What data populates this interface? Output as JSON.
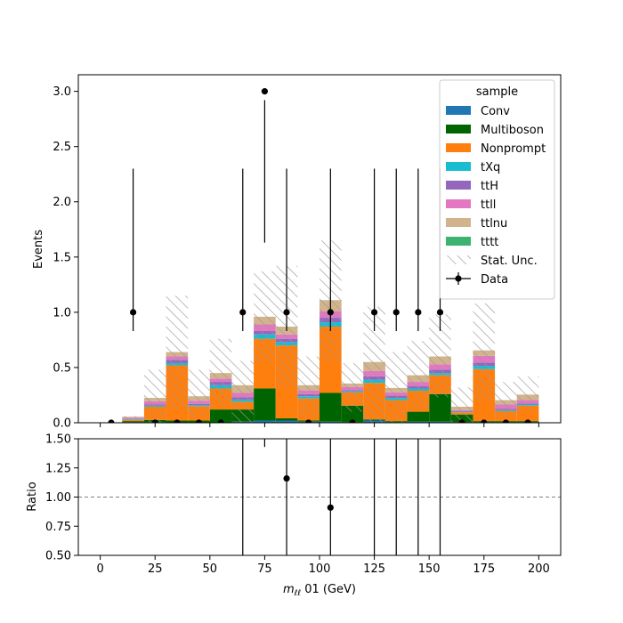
{
  "chart_data": {
    "type": "bar",
    "stacked": true,
    "xlabel_main": "m",
    "xlabel_sub": "ℓℓ",
    "xlabel_rest": " 01 (GeV)",
    "ylabel": "Events",
    "ratio_ylabel": "Ratio",
    "xlim": [
      -10,
      210
    ],
    "ylim": [
      0,
      3.15
    ],
    "ratio_ylim": [
      0.5,
      1.5
    ],
    "x_ticks": [
      0,
      25,
      50,
      75,
      100,
      125,
      150,
      175,
      200
    ],
    "x_tick_labels": [
      "0",
      "25",
      "50",
      "75",
      "100",
      "125",
      "150",
      "175",
      "200"
    ],
    "y_ticks": [
      0.0,
      0.5,
      1.0,
      1.5,
      2.0,
      2.5,
      3.0
    ],
    "y_tick_labels": [
      "0.0",
      "0.5",
      "1.0",
      "1.5",
      "2.0",
      "2.5",
      "3.0"
    ],
    "ratio_y_ticks": [
      0.5,
      0.75,
      1.0,
      1.25,
      1.5
    ],
    "ratio_y_tick_labels": [
      "0.50",
      "0.75",
      "1.00",
      "1.25",
      "1.50"
    ],
    "bin_edges": [
      0,
      10,
      20,
      30,
      40,
      50,
      60,
      70,
      80,
      90,
      100,
      110,
      120,
      130,
      140,
      150,
      160,
      170,
      180,
      190,
      200
    ],
    "legend": {
      "title": "sample",
      "placement": "top-right"
    },
    "series": [
      {
        "name": "Conv",
        "color": "#1f77b4",
        "values": [
          0,
          0.005,
          0.005,
          0,
          0,
          0,
          0.01,
          0.02,
          0.02,
          0.01,
          0.01,
          0.005,
          0.02,
          0.005,
          0.01,
          0.01,
          0.005,
          0.005,
          0.005,
          0.005
        ]
      },
      {
        "name": "Multiboson",
        "color": "#006400",
        "values": [
          0,
          0.01,
          0.02,
          0.02,
          0.02,
          0.12,
          0.11,
          0.29,
          0.02,
          0.01,
          0.26,
          0.15,
          0.01,
          0.01,
          0.09,
          0.25,
          0.07,
          0.01,
          0.01,
          0.01
        ]
      },
      {
        "name": "Nonprompt",
        "color": "#ff7f0e",
        "values": [
          0,
          0.01,
          0.12,
          0.5,
          0.13,
          0.19,
          0.07,
          0.45,
          0.66,
          0.2,
          0.6,
          0.12,
          0.33,
          0.19,
          0.19,
          0.17,
          0.02,
          0.47,
          0.09,
          0.14
        ]
      },
      {
        "name": "tXq",
        "color": "#17becf",
        "values": [
          0,
          0.005,
          0.01,
          0.02,
          0.01,
          0.03,
          0.02,
          0.04,
          0.03,
          0.02,
          0.04,
          0.01,
          0.03,
          0.02,
          0.02,
          0.02,
          0.005,
          0.03,
          0.01,
          0.01
        ]
      },
      {
        "name": "ttH",
        "color": "#9467bd",
        "values": [
          0,
          0.005,
          0.01,
          0.03,
          0.01,
          0.03,
          0.02,
          0.03,
          0.03,
          0.02,
          0.04,
          0.01,
          0.03,
          0.02,
          0.02,
          0.03,
          0.005,
          0.03,
          0.01,
          0.01
        ]
      },
      {
        "name": "ttll",
        "color": "#e377c2",
        "values": [
          0,
          0.01,
          0.03,
          0.03,
          0.03,
          0.03,
          0.04,
          0.06,
          0.04,
          0.03,
          0.06,
          0.03,
          0.05,
          0.03,
          0.04,
          0.05,
          0.01,
          0.06,
          0.04,
          0.03
        ]
      },
      {
        "name": "ttlnu",
        "color": "#d2b48c",
        "values": [
          0,
          0.01,
          0.03,
          0.04,
          0.04,
          0.05,
          0.07,
          0.07,
          0.07,
          0.05,
          0.1,
          0.03,
          0.08,
          0.04,
          0.06,
          0.07,
          0.03,
          0.05,
          0.04,
          0.05
        ]
      },
      {
        "name": "tttt",
        "color": "#3cb371",
        "values": [
          0,
          0,
          0,
          0,
          0,
          0,
          0,
          0,
          0,
          0,
          0,
          0,
          0,
          0,
          0,
          0,
          0,
          0,
          0,
          0
        ]
      }
    ],
    "stat_unc": {
      "name": "Stat. Unc.",
      "low": [
        0,
        0.02,
        0,
        0.12,
        0.05,
        0.15,
        0,
        0.55,
        0.32,
        0.05,
        0.56,
        0.1,
        0,
        0,
        0.12,
        0.23,
        0,
        0.2,
        0.05,
        0.1
      ],
      "high": [
        0,
        0.06,
        0.48,
        1.15,
        0.48,
        0.76,
        0.56,
        1.37,
        1.42,
        0.6,
        1.65,
        0.54,
        1.05,
        0.64,
        0.74,
        0.98,
        0.32,
        1.08,
        0.37,
        0.42
      ]
    },
    "data_points": {
      "name": "Data",
      "x": [
        5,
        15,
        25,
        35,
        45,
        55,
        65,
        75,
        85,
        95,
        105,
        115,
        125,
        135,
        145,
        155,
        165,
        175,
        185,
        195
      ],
      "y": [
        0,
        1,
        0,
        0,
        0,
        0,
        1,
        3,
        1,
        0,
        1,
        0,
        1,
        1,
        1,
        1,
        0,
        0,
        0,
        0
      ],
      "err_low": [
        0,
        0.83,
        0,
        0,
        0,
        0,
        0.83,
        1.63,
        0.83,
        0,
        0.83,
        0,
        0.83,
        0.83,
        0.83,
        0.83,
        0,
        0,
        0,
        0
      ],
      "err_high": [
        0,
        2.3,
        0,
        0,
        0,
        0,
        2.3,
        2.92,
        2.3,
        0,
        2.3,
        0,
        2.3,
        2.3,
        2.3,
        2.3,
        0,
        0,
        0,
        0
      ]
    },
    "ratio_points": {
      "x": [
        85,
        105
      ],
      "y": [
        1.16,
        0.91
      ]
    },
    "ratio_error_bars": {
      "x": [
        65,
        75,
        85,
        105,
        125,
        135,
        145,
        155
      ],
      "low": [
        0.5,
        1.43,
        0.5,
        0.5,
        0.5,
        0.5,
        0.5,
        0.5
      ],
      "high": [
        1.5,
        1.5,
        1.5,
        1.5,
        1.5,
        1.5,
        1.5,
        1.5
      ]
    },
    "ratio_reference": 1.0
  }
}
